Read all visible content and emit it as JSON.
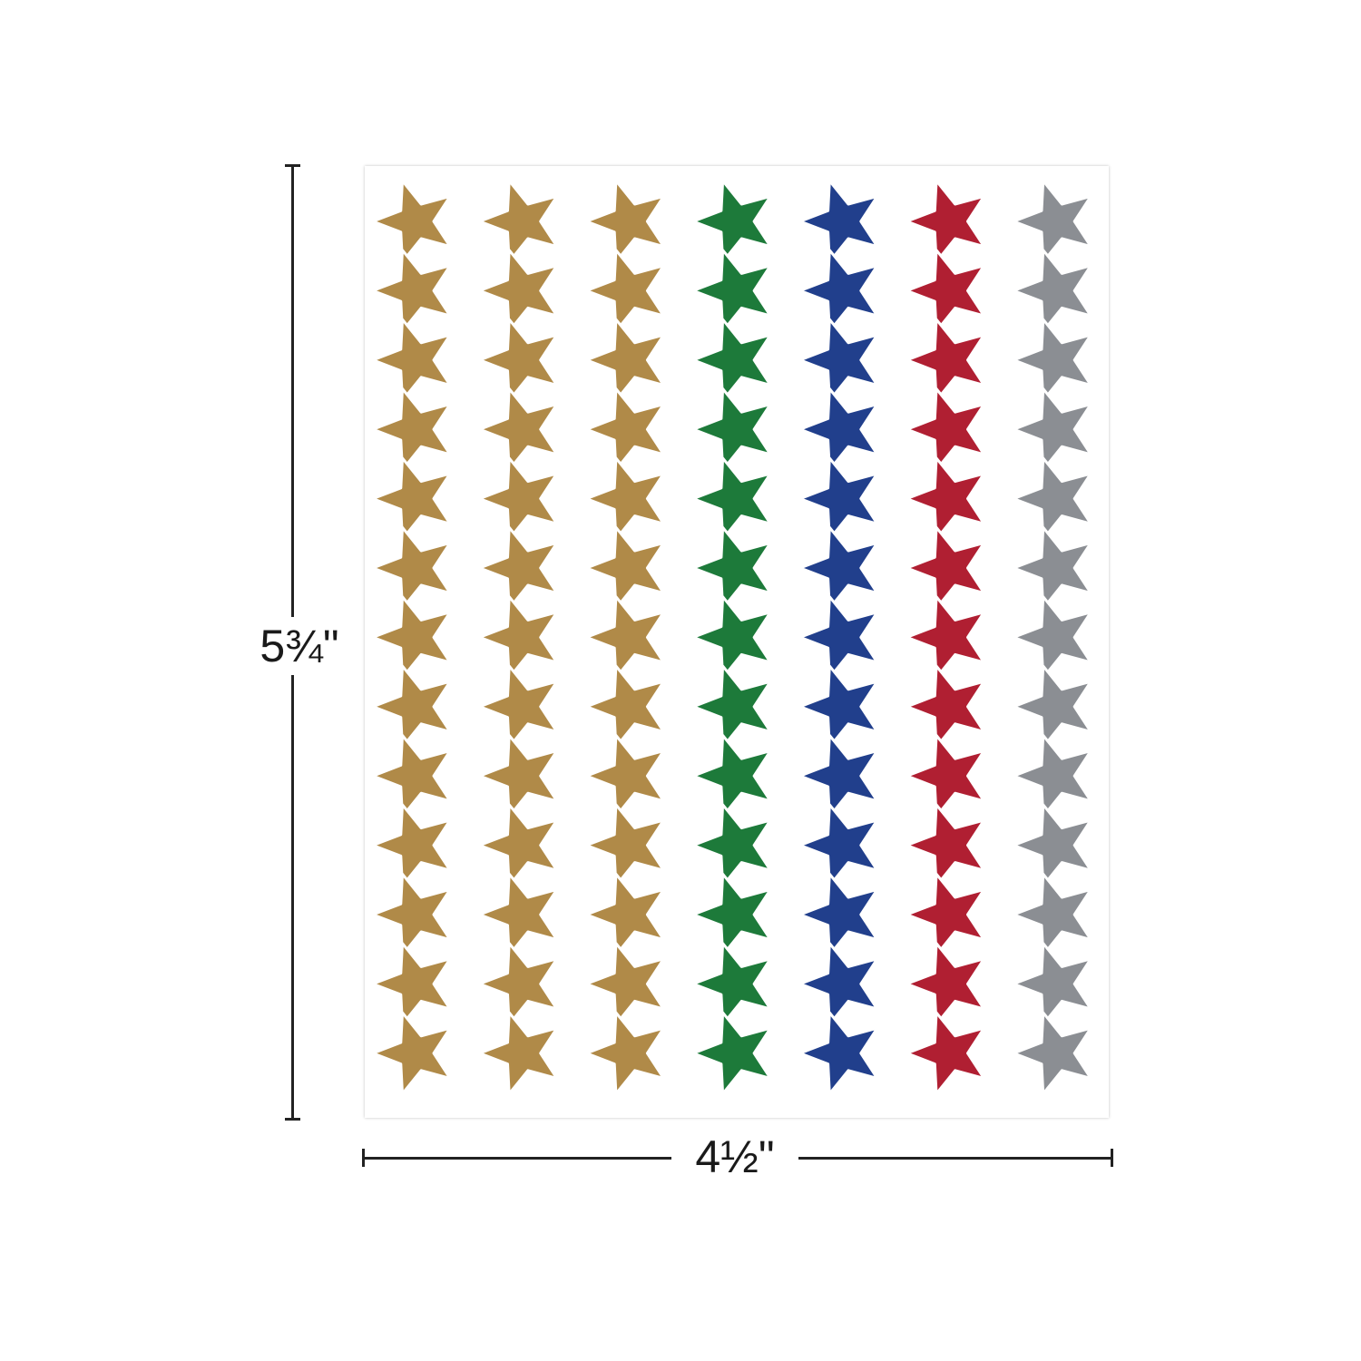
{
  "dimensions": {
    "height_label": "5¾\"",
    "width_label": "4½\""
  },
  "sheet": {
    "stars_per_column": 13,
    "columns": [
      {
        "color_name": "gold",
        "color": "#b08a48"
      },
      {
        "color_name": "gold",
        "color": "#b08a48"
      },
      {
        "color_name": "gold",
        "color": "#b08a48"
      },
      {
        "color_name": "green",
        "color": "#1d7a3a"
      },
      {
        "color_name": "blue",
        "color": "#213f8c"
      },
      {
        "color_name": "red",
        "color": "#b01f32"
      },
      {
        "color_name": "silver",
        "color": "#8b8e93"
      }
    ]
  }
}
